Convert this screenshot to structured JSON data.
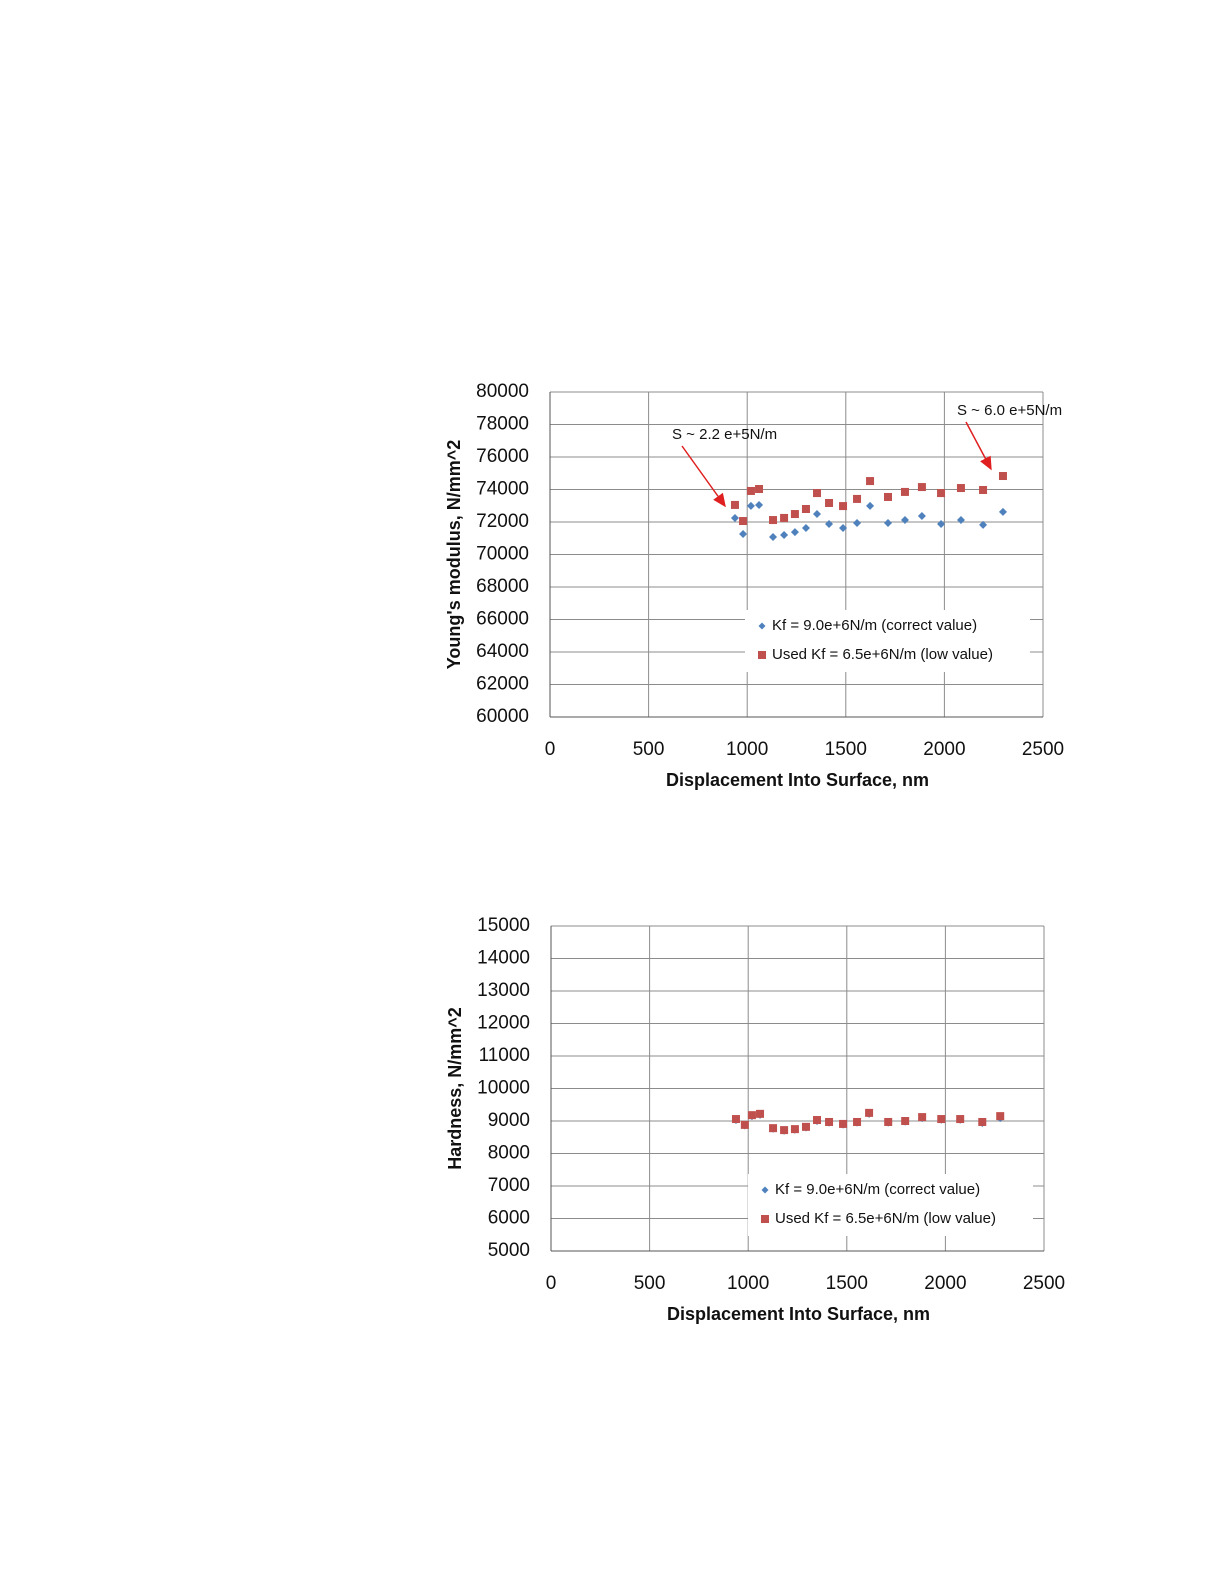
{
  "chart_data": [
    {
      "type": "scatter",
      "x_label": "Displacement Into Surface, nm",
      "y_label": "Young's modulus, N/mm^2",
      "xlim": [
        0,
        2500
      ],
      "xticks": [
        0,
        500,
        1000,
        1500,
        2000,
        2500
      ],
      "ylim": [
        60000,
        80000
      ],
      "yticks": [
        60000,
        62000,
        64000,
        66000,
        68000,
        70000,
        72000,
        74000,
        76000,
        78000,
        80000
      ],
      "grid": true,
      "legend": "lower right",
      "annotations": [
        "S ~ 2.2 e+5N/m",
        "S ~ 6.0 e+5N/m"
      ],
      "x": [
        938,
        979,
        1019,
        1060,
        1131,
        1187,
        1242,
        1298,
        1354,
        1415,
        1486,
        1557,
        1623,
        1714,
        1800,
        1886,
        1983,
        2084,
        2196,
        2297
      ],
      "series": [
        {
          "name": "Kf = 9.0e+6N/m (correct value)",
          "color": "#4f81bd",
          "marker": "diamond",
          "values": [
            72250,
            71260,
            72990,
            73050,
            71080,
            71200,
            71380,
            71630,
            72490,
            71880,
            71630,
            71940,
            72990,
            71940,
            72120,
            72370,
            71880,
            72120,
            71820,
            72620
          ]
        },
        {
          "name": "Used Kf = 6.5e+6N/m (low value)",
          "color": "#c0504d",
          "marker": "square",
          "values": [
            73050,
            72060,
            73910,
            74030,
            72120,
            72250,
            72490,
            72800,
            73780,
            73170,
            72980,
            73420,
            74520,
            73540,
            73850,
            74150,
            73780,
            74090,
            73970,
            74830
          ]
        }
      ]
    },
    {
      "type": "scatter",
      "x_label": "Displacement Into Surface, nm",
      "y_label": "Hardness, N/mm^2",
      "xlim": [
        0,
        2500
      ],
      "xticks": [
        0,
        500,
        1000,
        1500,
        2000,
        2500
      ],
      "ylim": [
        5000,
        15000
      ],
      "yticks": [
        5000,
        6000,
        7000,
        8000,
        9000,
        10000,
        11000,
        12000,
        13000,
        14000,
        15000
      ],
      "grid": true,
      "legend": "lower right",
      "x": [
        938,
        983,
        1019,
        1060,
        1126,
        1182,
        1237,
        1293,
        1349,
        1410,
        1481,
        1552,
        1613,
        1710,
        1796,
        1882,
        1979,
        2075,
        2187,
        2278
      ],
      "series": [
        {
          "name": "Kf = 9.0e+6N/m (correct value)",
          "color": "#4f81bd",
          "marker": "diamond",
          "values": [
            9030,
            8860,
            9150,
            9190,
            8760,
            8700,
            8730,
            8800,
            9000,
            8950,
            8890,
            8950,
            9220,
            8950,
            8980,
            9090,
            9040,
            9040,
            8940,
            9090
          ]
        },
        {
          "name": "Used Kf = 6.5e+6N/m (low value)",
          "color": "#c0504d",
          "marker": "square",
          "values": [
            9060,
            8880,
            9180,
            9220,
            8780,
            8720,
            8750,
            8820,
            9030,
            8970,
            8910,
            8970,
            9250,
            8970,
            9000,
            9120,
            9060,
            9060,
            8970,
            9150
          ]
        }
      ]
    }
  ]
}
